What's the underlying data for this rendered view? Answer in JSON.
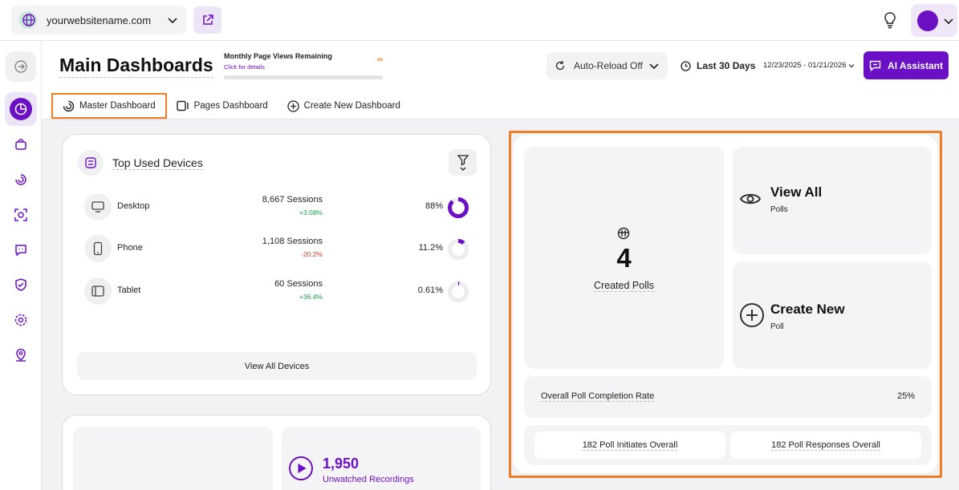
{
  "topbar": {
    "site_name": "yourwebsitename.com"
  },
  "header": {
    "title": "Main Dashboards",
    "views_title": "Monthly Page Views Remaining",
    "views_link": "Click for details",
    "views_value": "∞",
    "reload_label": "Auto-Reload Off",
    "range_label": "Last 30 Days",
    "dates": "12/23/2025 - 01/21/2026",
    "ai_label": "AI Assistant"
  },
  "tabs": [
    {
      "label": "Master Dashboard",
      "active": true
    },
    {
      "label": "Pages Dashboard",
      "active": false
    },
    {
      "label": "Create New Dashboard",
      "active": false
    }
  ],
  "devices": {
    "title": "Top Used Devices",
    "rows": [
      {
        "name": "Desktop",
        "sessions": "8,667 Sessions",
        "change": "+3.08%",
        "percent": "88%",
        "share": 0.88,
        "trend": "up"
      },
      {
        "name": "Phone",
        "sessions": "1,108 Sessions",
        "change": "-20.2%",
        "percent": "11.2%",
        "share": 0.112,
        "trend": "down"
      },
      {
        "name": "Tablet",
        "sessions": "60 Sessions",
        "change": "+36.4%",
        "percent": "0.61%",
        "share": 0.0061,
        "trend": "up"
      }
    ],
    "view_all_label": "View All Devices"
  },
  "recordings": {
    "count": "1,950",
    "label": "Unwatched Recordings"
  },
  "polls": {
    "count": "4",
    "count_label": "Created Polls",
    "view_title": "View All",
    "view_sub": "Polls",
    "create_title": "Create New",
    "create_sub": "Poll",
    "rate_label": "Overall Poll Completion Rate",
    "rate_value": "25%",
    "initiates": "182 Poll Initiates Overall",
    "responses": "182 Poll Responses Overall"
  },
  "colors": {
    "accent": "#6b10c4",
    "highlight": "#f07e26",
    "positive": "#1b9c4b",
    "negative": "#d03a2b"
  }
}
